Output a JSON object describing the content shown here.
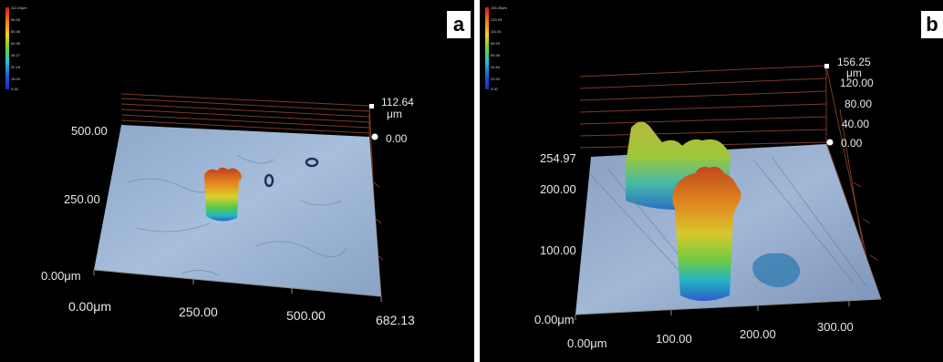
{
  "panel_a": {
    "letter": "a",
    "legend_ticks": [
      "112.64μm",
      "96.55",
      "80.46",
      "64.36",
      "48.27",
      "32.18",
      "16.09",
      "0.00"
    ],
    "z_labels": [
      "112.64",
      "μm",
      "0.00"
    ],
    "y_labels": [
      "500.00",
      "250.00",
      "0.00μm"
    ],
    "x_labels": [
      "0.00μm",
      "250.00",
      "500.00",
      "682.13"
    ]
  },
  "panel_b": {
    "letter": "b",
    "legend_ticks": [
      "156.25μm",
      "133.93",
      "111.61",
      "89.29",
      "66.96",
      "44.64",
      "22.32",
      "0.00"
    ],
    "z_labels": [
      "156.25",
      "μm",
      "120.00",
      "80.00",
      "40.00",
      "0.00"
    ],
    "y_labels": [
      "254.97",
      "200.00",
      "100.00",
      "0.00μm"
    ],
    "x_labels": [
      "0.00μm",
      "100.00",
      "200.00",
      "300.00"
    ]
  }
}
